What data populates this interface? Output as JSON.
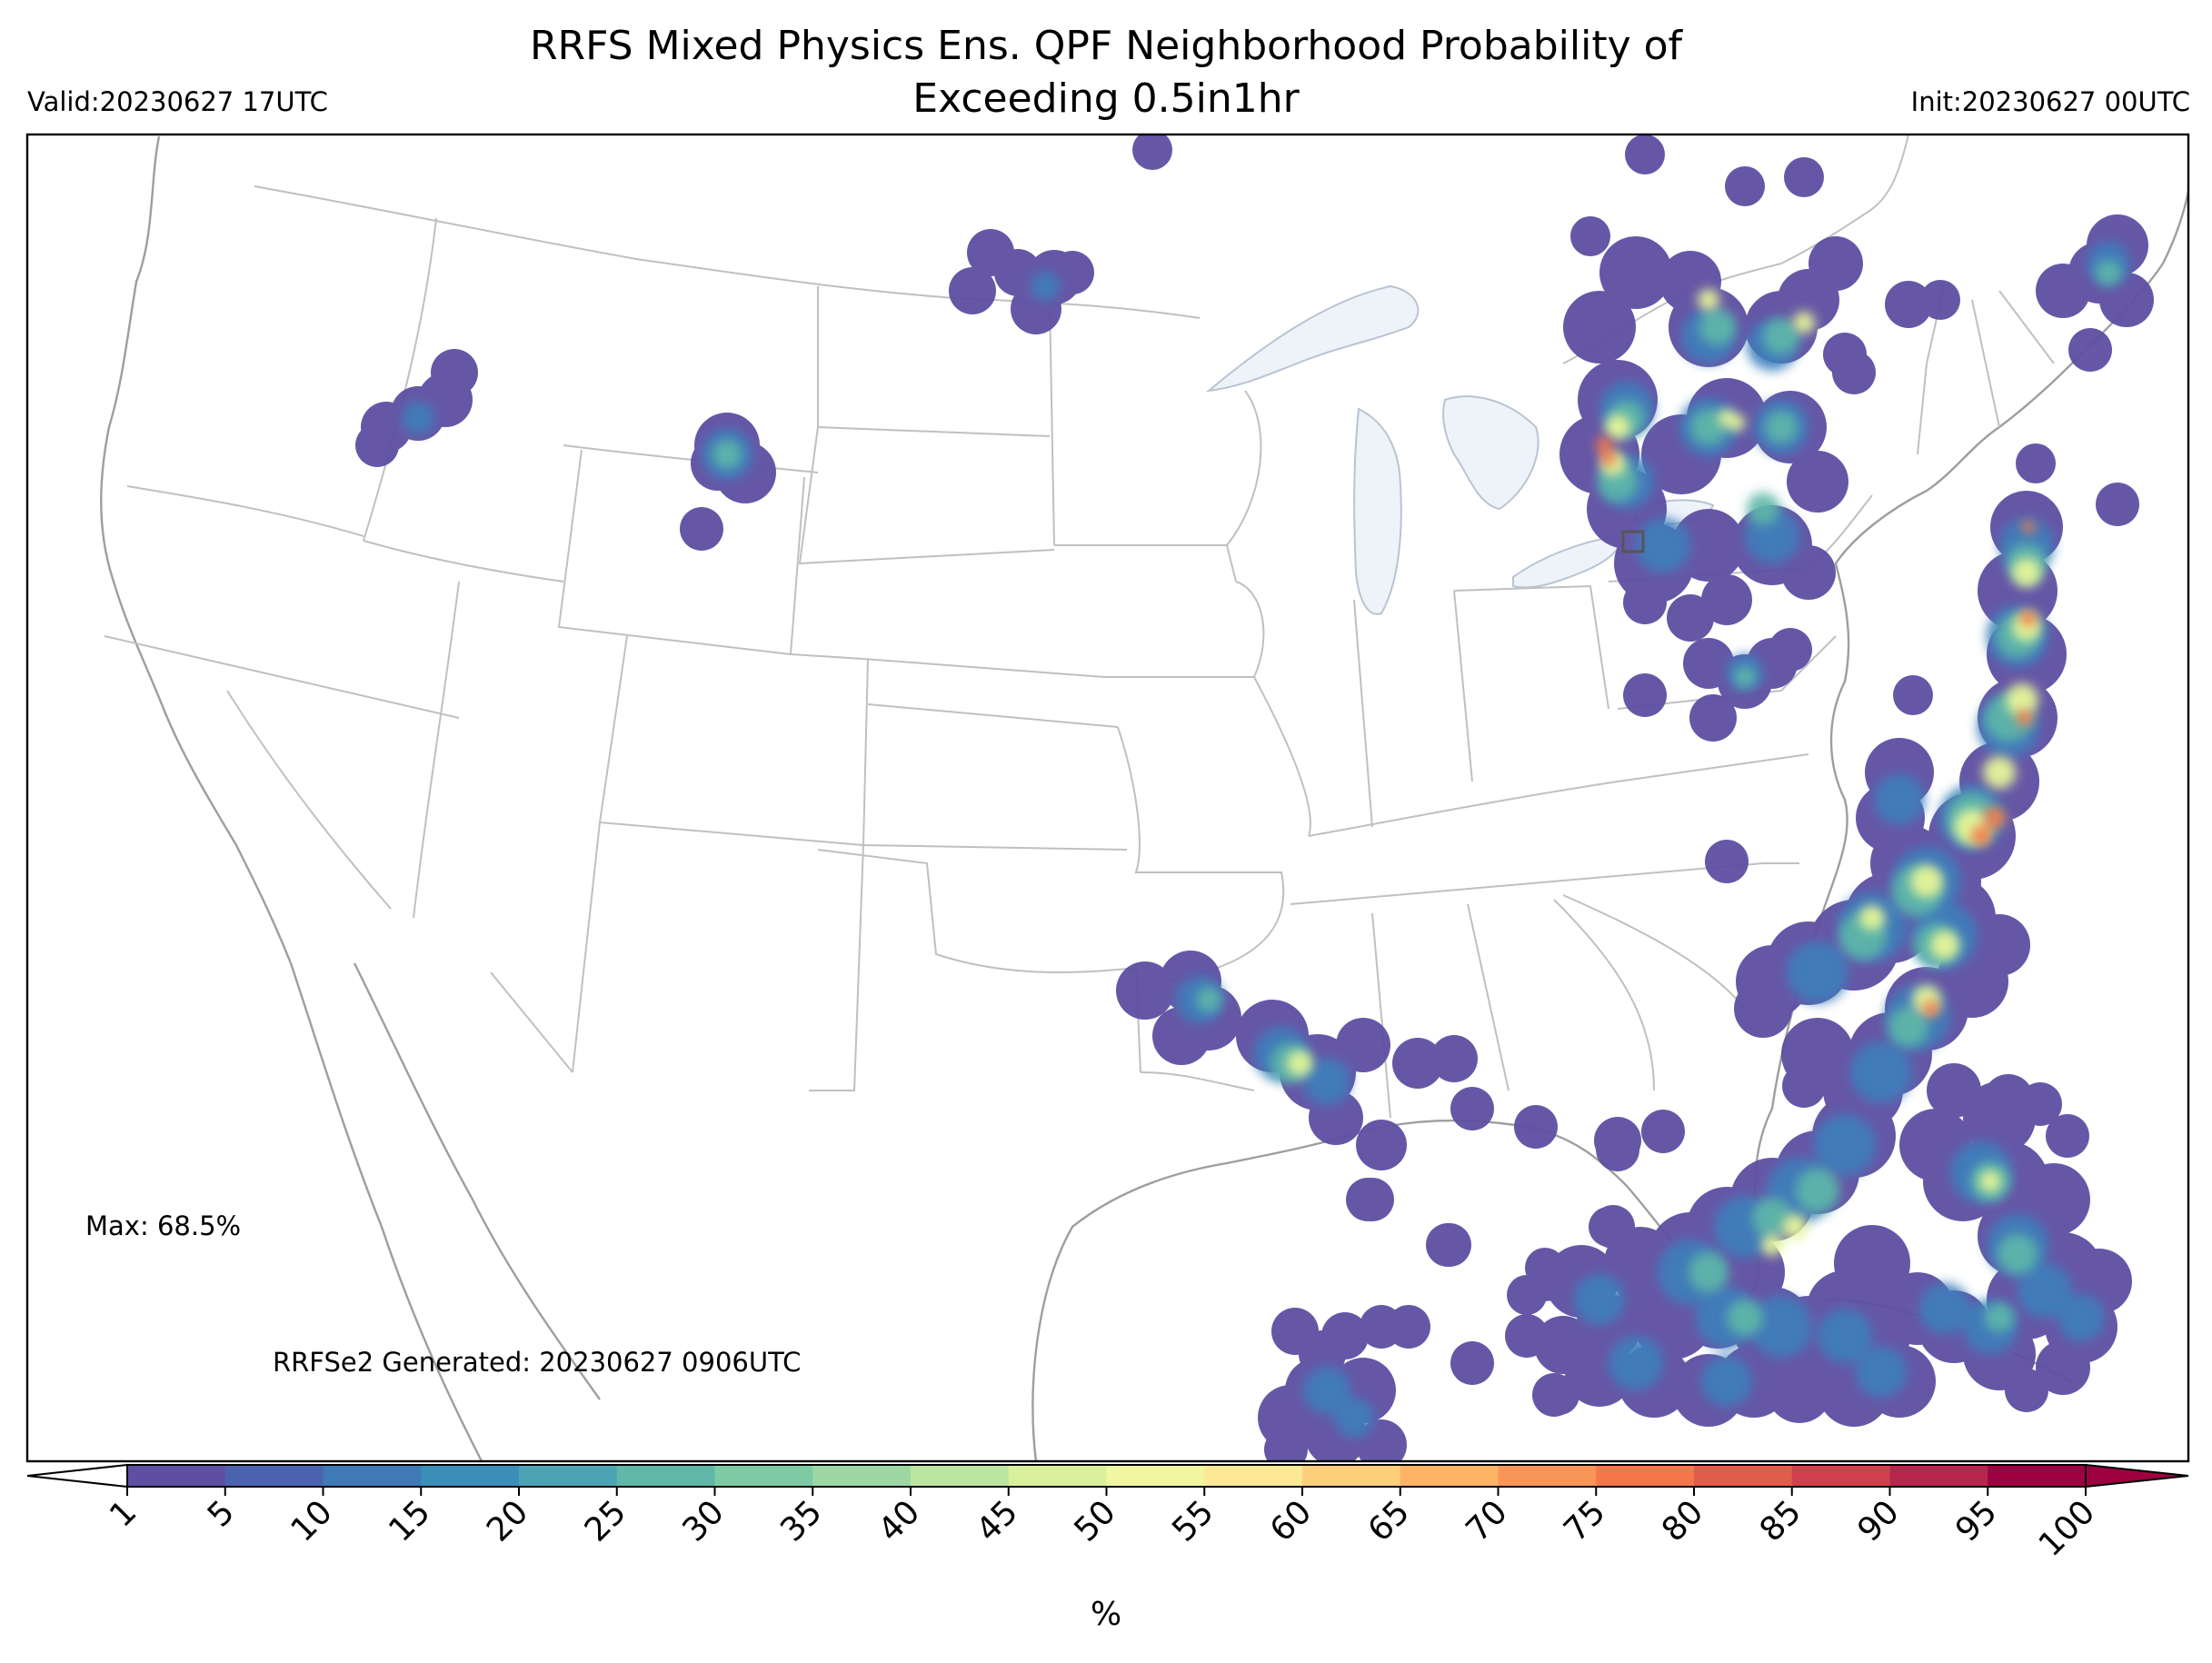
{
  "header": {
    "title_line1": "RRFS Mixed Physics Ens. QPF Neighborhood Probability of",
    "title_line2": "Exceeding 0.5in1hr",
    "valid": "Valid:20230627 17UTC",
    "init": "Init:20230627 00UTC"
  },
  "annotations": {
    "max": "Max: 68.5%",
    "generated": "RRFSe2 Generated: 20230627 0906UTC"
  },
  "colorbar": {
    "unit_label": "%",
    "ticks": [
      "1",
      "5",
      "10",
      "15",
      "20",
      "25",
      "30",
      "35",
      "40",
      "45",
      "50",
      "55",
      "60",
      "65",
      "70",
      "75",
      "80",
      "85",
      "90",
      "95",
      "100"
    ],
    "colors": [
      "#5e4fa2",
      "#4b63ae",
      "#3f79b6",
      "#3a8fb8",
      "#4aa4b4",
      "#60b7a7",
      "#7ecaa4",
      "#9dd8a4",
      "#bce5a0",
      "#dbf09a",
      "#f0f7a0",
      "#fde896",
      "#fecf7b",
      "#fdb465",
      "#f99556",
      "#f3774a",
      "#e35b49",
      "#d1404d",
      "#b8264d",
      "#9e0142"
    ],
    "under_color": "#ffffff",
    "over_color": "#9e0142"
  },
  "map": {
    "projection": "Lambert Conformal",
    "region": "CONUS",
    "max_probability_percent": 68.5,
    "ocean_lake_fill": "#eef3f9",
    "boundary_color": "#b5b5b5",
    "coast_color": "#9e9e9e"
  }
}
